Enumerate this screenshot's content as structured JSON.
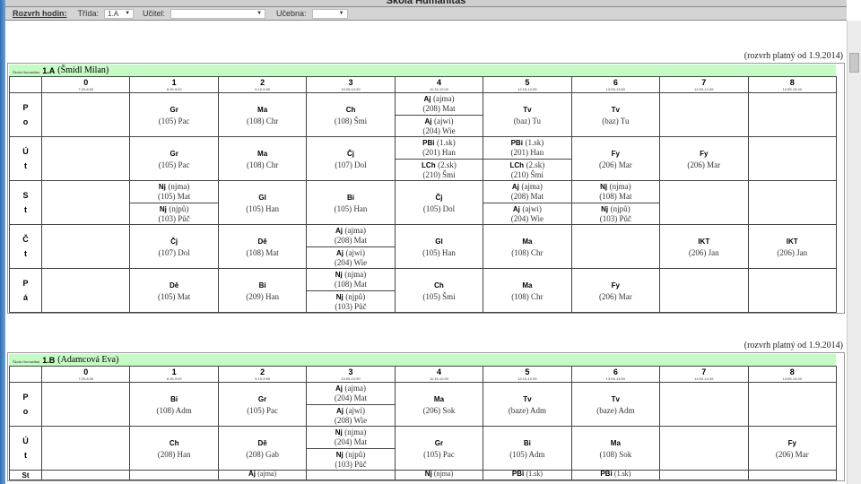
{
  "window": {
    "title": "Škola Humanitas"
  },
  "toolbar": {
    "label": "Rozvrh hodin:",
    "class_label": "Třída:",
    "class_value": "1.A",
    "teacher_label": "Učitel:",
    "teacher_value": "",
    "room_label": "Učebna:",
    "room_value": ""
  },
  "periods": [
    {
      "n": "0",
      "t": "7:20-8:05"
    },
    {
      "n": "1",
      "t": "8:15-9:00"
    },
    {
      "n": "2",
      "t": "9:10-9:55"
    },
    {
      "n": "3",
      "t": "10:05-10:50"
    },
    {
      "n": "4",
      "t": "11:15-12:00"
    },
    {
      "n": "5",
      "t": "12:10-12:55"
    },
    {
      "n": "6",
      "t": "13:05-13:50"
    },
    {
      "n": "7",
      "t": "14:00-14:45"
    },
    {
      "n": "8",
      "t": "14:55-15:40"
    }
  ],
  "tables": [
    {
      "valid": "(rozvrh platný od 1.9.2014)",
      "school": "Škola Humanitas",
      "cls": "1.A",
      "teacher": "(Šmídl Milan)",
      "days": [
        {
          "d": "Po",
          "cells": [
            [],
            [
              {
                "s": "Gr",
                "r": "(105) Pac"
              }
            ],
            [
              {
                "s": "Ma",
                "r": "(108) Chr"
              }
            ],
            [
              {
                "s": "Ch",
                "r": "(108) Šmi"
              }
            ],
            [
              {
                "s": "Aj",
                "g": "(ajma)",
                "r": "(208) Mat"
              },
              {
                "s": "Aj",
                "g": "(ajwi)",
                "r": "(204) Wie"
              }
            ],
            [
              {
                "s": "Tv",
                "r": "(baz) Tu"
              }
            ],
            [
              {
                "s": "Tv",
                "r": "(baz) Tu"
              }
            ],
            [],
            []
          ]
        },
        {
          "d": "Út",
          "cells": [
            [],
            [
              {
                "s": "Gr",
                "r": "(105) Pac"
              }
            ],
            [
              {
                "s": "Ma",
                "r": "(108) Chr"
              }
            ],
            [
              {
                "s": "Čj",
                "r": "(107) Dol"
              }
            ],
            [
              {
                "s": "PBi",
                "g": "(1.sk)",
                "r": "(201) Han"
              },
              {
                "s": "LCh",
                "g": "(2.sk)",
                "r": "(210) Šmi"
              }
            ],
            [
              {
                "s": "PBi",
                "g": "(1.sk)",
                "r": "(201) Han"
              },
              {
                "s": "LCh",
                "g": "(2.sk)",
                "r": "(210) Šmi"
              }
            ],
            [
              {
                "s": "Fy",
                "r": "(206) Mar"
              }
            ],
            [
              {
                "s": "Fy",
                "r": "(206) Mar"
              }
            ],
            []
          ]
        },
        {
          "d": "St",
          "cells": [
            [],
            [
              {
                "s": "Nj",
                "g": "(njma)",
                "r": "(105) Mat"
              },
              {
                "s": "Nj",
                "g": "(njpů)",
                "r": "(103) Půč"
              }
            ],
            [
              {
                "s": "Gl",
                "r": "(105) Han"
              }
            ],
            [
              {
                "s": "Bi",
                "r": "(105) Han"
              }
            ],
            [
              {
                "s": "Čj",
                "r": "(105) Dol"
              }
            ],
            [
              {
                "s": "Aj",
                "g": "(ajma)",
                "r": "(208) Mat"
              },
              {
                "s": "Aj",
                "g": "(ajwi)",
                "r": "(204) Wie"
              }
            ],
            [
              {
                "s": "Nj",
                "g": "(njma)",
                "r": "(108) Mat"
              },
              {
                "s": "Nj",
                "g": "(njpů)",
                "r": "(103) Půč"
              }
            ],
            [],
            []
          ]
        },
        {
          "d": "Čt",
          "cells": [
            [],
            [
              {
                "s": "Čj",
                "r": "(107) Dol"
              }
            ],
            [
              {
                "s": "Dě",
                "r": "(108) Mat"
              }
            ],
            [
              {
                "s": "Aj",
                "g": "(ajma)",
                "r": "(208) Mat"
              },
              {
                "s": "Aj",
                "g": "(ajwi)",
                "r": "(204) Wie"
              }
            ],
            [
              {
                "s": "Gl",
                "r": "(105) Han"
              }
            ],
            [
              {
                "s": "Ma",
                "r": "(108) Chr"
              }
            ],
            [],
            [
              {
                "s": "IKT",
                "r": "(206) Jan"
              }
            ],
            [
              {
                "s": "IKT",
                "r": "(206) Jan"
              }
            ]
          ]
        },
        {
          "d": "Pá",
          "cells": [
            [],
            [
              {
                "s": "Dě",
                "r": "(105) Mat"
              }
            ],
            [
              {
                "s": "Bi",
                "r": "(209) Han"
              }
            ],
            [
              {
                "s": "Nj",
                "g": "(njma)",
                "r": "(108) Mat"
              },
              {
                "s": "Nj",
                "g": "(njpů)",
                "r": "(103) Půč"
              }
            ],
            [
              {
                "s": "Ch",
                "r": "(105) Šmi"
              }
            ],
            [
              {
                "s": "Ma",
                "r": "(108) Chr"
              }
            ],
            [
              {
                "s": "Fy",
                "r": "(206) Mar"
              }
            ],
            [],
            []
          ]
        }
      ]
    },
    {
      "valid": "(rozvrh platný od 1.9.2014)",
      "school": "Škola Humanitas",
      "cls": "1.B",
      "teacher": "(Adamcová Eva)",
      "days": [
        {
          "d": "Po",
          "cells": [
            [],
            [
              {
                "s": "Bi",
                "r": "(108) Adm"
              }
            ],
            [
              {
                "s": "Gr",
                "r": "(105) Pac"
              }
            ],
            [
              {
                "s": "Aj",
                "g": "(ajma)",
                "r": "(204) Mat"
              },
              {
                "s": "Aj",
                "g": "(ajwi)",
                "r": "(208) Wie"
              }
            ],
            [
              {
                "s": "Ma",
                "r": "(206) Sok"
              }
            ],
            [
              {
                "s": "Tv",
                "r": "(baze) Adm"
              }
            ],
            [
              {
                "s": "Tv",
                "r": "(baze) Adm"
              }
            ],
            [],
            []
          ]
        },
        {
          "d": "Út",
          "cells": [
            [],
            [
              {
                "s": "Ch",
                "r": "(208) Han"
              }
            ],
            [
              {
                "s": "Dě",
                "r": "(208) Gab"
              }
            ],
            [
              {
                "s": "Nj",
                "g": "(njma)",
                "r": "(204) Mat"
              },
              {
                "s": "Nj",
                "g": "(njpů)",
                "r": "(103) Půč"
              }
            ],
            [
              {
                "s": "Gr",
                "r": "(105) Pac"
              }
            ],
            [
              {
                "s": "Bi",
                "r": "(105) Adm"
              }
            ],
            [
              {
                "s": "Ma",
                "r": "(108) Sok"
              }
            ],
            [],
            [
              {
                "s": "Fy",
                "r": "(206) Mar"
              }
            ]
          ]
        },
        {
          "d": "St",
          "cells": [
            [],
            [],
            [
              {
                "s": "Aj",
                "g": "(ajma)"
              }
            ],
            [],
            [
              {
                "s": "Nj",
                "g": "(njma)"
              }
            ],
            [
              {
                "s": "PBi",
                "g": "(1.sk)"
              }
            ],
            [
              {
                "s": "PBi",
                "g": "(1.sk)"
              }
            ],
            [],
            []
          ]
        }
      ]
    }
  ]
}
